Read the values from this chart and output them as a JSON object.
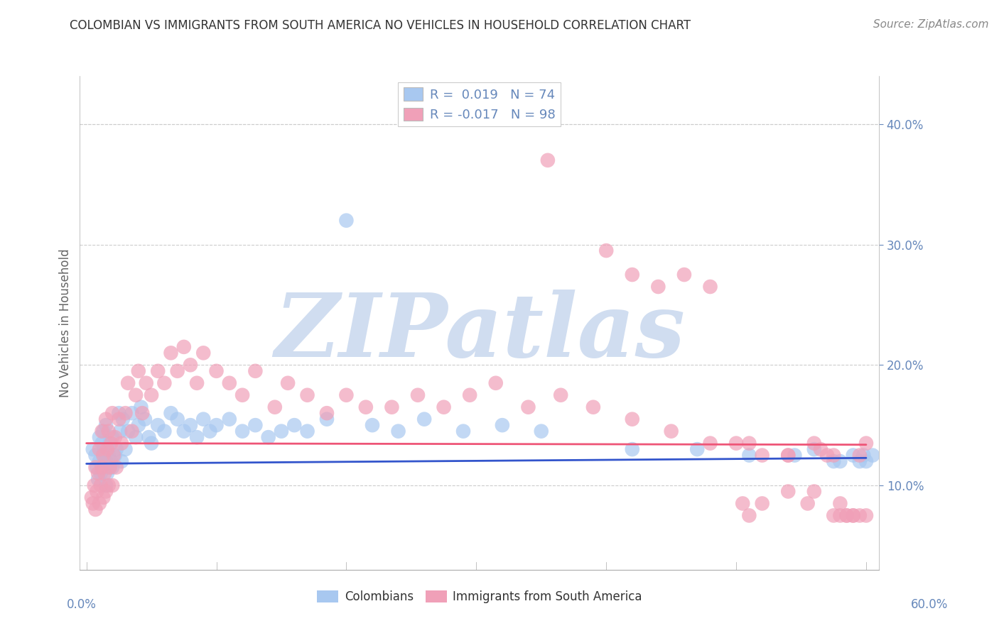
{
  "title": "COLOMBIAN VS IMMIGRANTS FROM SOUTH AMERICA NO VEHICLES IN HOUSEHOLD CORRELATION CHART",
  "source": "Source: ZipAtlas.com",
  "ylabel": "No Vehicles in Household",
  "ytick_labels": [
    "10.0%",
    "20.0%",
    "30.0%",
    "40.0%"
  ],
  "ytick_values": [
    0.1,
    0.2,
    0.3,
    0.4
  ],
  "xlim": [
    -0.005,
    0.61
  ],
  "ylim": [
    0.03,
    0.44
  ],
  "legend_labels_bottom": [
    "Colombians",
    "Immigrants from South America"
  ],
  "blue_color": "#a8c8f0",
  "pink_color": "#f0a0b8",
  "blue_line_color": "#3355cc",
  "pink_line_color": "#ee5577",
  "blue_line_intercept": 0.118,
  "blue_line_slope": 0.008,
  "pink_line_intercept": 0.135,
  "pink_line_slope": -0.002,
  "watermark": "ZIPatlas",
  "watermark_color": "#d0ddf0",
  "background_color": "#ffffff",
  "grid_color": "#cccccc",
  "title_color": "#333333",
  "axis_label_color": "#6688bb",
  "blue_scatter_x": [
    0.005,
    0.007,
    0.008,
    0.009,
    0.01,
    0.01,
    0.011,
    0.012,
    0.012,
    0.013,
    0.013,
    0.014,
    0.015,
    0.015,
    0.015,
    0.016,
    0.017,
    0.018,
    0.018,
    0.019,
    0.02,
    0.02,
    0.022,
    0.023,
    0.025,
    0.026,
    0.027,
    0.028,
    0.03,
    0.032,
    0.035,
    0.038,
    0.04,
    0.042,
    0.045,
    0.048,
    0.05,
    0.055,
    0.06,
    0.065,
    0.07,
    0.075,
    0.08,
    0.085,
    0.09,
    0.095,
    0.1,
    0.11,
    0.12,
    0.13,
    0.14,
    0.15,
    0.16,
    0.17,
    0.185,
    0.2,
    0.22,
    0.24,
    0.26,
    0.29,
    0.32,
    0.35,
    0.42,
    0.47,
    0.51,
    0.545,
    0.56,
    0.575,
    0.58,
    0.59,
    0.595,
    0.598,
    0.6,
    0.605
  ],
  "blue_scatter_y": [
    0.13,
    0.125,
    0.115,
    0.105,
    0.12,
    0.14,
    0.11,
    0.115,
    0.135,
    0.125,
    0.145,
    0.13,
    0.1,
    0.12,
    0.15,
    0.11,
    0.125,
    0.115,
    0.135,
    0.12,
    0.115,
    0.14,
    0.125,
    0.13,
    0.16,
    0.145,
    0.12,
    0.155,
    0.13,
    0.145,
    0.16,
    0.14,
    0.15,
    0.165,
    0.155,
    0.14,
    0.135,
    0.15,
    0.145,
    0.16,
    0.155,
    0.145,
    0.15,
    0.14,
    0.155,
    0.145,
    0.15,
    0.155,
    0.145,
    0.15,
    0.14,
    0.145,
    0.15,
    0.145,
    0.155,
    0.32,
    0.15,
    0.145,
    0.155,
    0.145,
    0.15,
    0.145,
    0.13,
    0.13,
    0.125,
    0.125,
    0.13,
    0.12,
    0.12,
    0.125,
    0.12,
    0.125,
    0.12,
    0.125
  ],
  "pink_scatter_x": [
    0.004,
    0.005,
    0.006,
    0.007,
    0.007,
    0.008,
    0.009,
    0.01,
    0.01,
    0.011,
    0.012,
    0.012,
    0.013,
    0.013,
    0.014,
    0.015,
    0.015,
    0.016,
    0.017,
    0.017,
    0.018,
    0.019,
    0.02,
    0.02,
    0.021,
    0.022,
    0.023,
    0.025,
    0.027,
    0.03,
    0.032,
    0.035,
    0.038,
    0.04,
    0.043,
    0.046,
    0.05,
    0.055,
    0.06,
    0.065,
    0.07,
    0.075,
    0.08,
    0.085,
    0.09,
    0.1,
    0.11,
    0.12,
    0.13,
    0.145,
    0.155,
    0.17,
    0.185,
    0.2,
    0.215,
    0.235,
    0.255,
    0.275,
    0.295,
    0.315,
    0.34,
    0.365,
    0.39,
    0.42,
    0.45,
    0.48,
    0.51,
    0.54,
    0.565,
    0.57,
    0.58,
    0.59,
    0.595,
    0.6,
    0.355,
    0.4,
    0.42,
    0.44,
    0.46,
    0.48,
    0.5,
    0.52,
    0.54,
    0.56,
    0.575,
    0.585,
    0.59,
    0.595,
    0.6,
    0.555,
    0.54,
    0.52,
    0.51,
    0.505,
    0.56,
    0.575,
    0.58,
    0.585
  ],
  "pink_scatter_y": [
    0.09,
    0.085,
    0.1,
    0.115,
    0.08,
    0.095,
    0.11,
    0.085,
    0.13,
    0.1,
    0.115,
    0.145,
    0.09,
    0.125,
    0.11,
    0.095,
    0.155,
    0.13,
    0.1,
    0.145,
    0.115,
    0.135,
    0.1,
    0.16,
    0.125,
    0.14,
    0.115,
    0.155,
    0.135,
    0.16,
    0.185,
    0.145,
    0.175,
    0.195,
    0.16,
    0.185,
    0.175,
    0.195,
    0.185,
    0.21,
    0.195,
    0.215,
    0.2,
    0.185,
    0.21,
    0.195,
    0.185,
    0.175,
    0.195,
    0.165,
    0.185,
    0.175,
    0.16,
    0.175,
    0.165,
    0.165,
    0.175,
    0.165,
    0.175,
    0.185,
    0.165,
    0.175,
    0.165,
    0.155,
    0.145,
    0.135,
    0.135,
    0.125,
    0.13,
    0.125,
    0.075,
    0.075,
    0.075,
    0.075,
    0.37,
    0.295,
    0.275,
    0.265,
    0.275,
    0.265,
    0.135,
    0.125,
    0.125,
    0.135,
    0.125,
    0.075,
    0.075,
    0.125,
    0.135,
    0.085,
    0.095,
    0.085,
    0.075,
    0.085,
    0.095,
    0.075,
    0.085,
    0.075
  ]
}
